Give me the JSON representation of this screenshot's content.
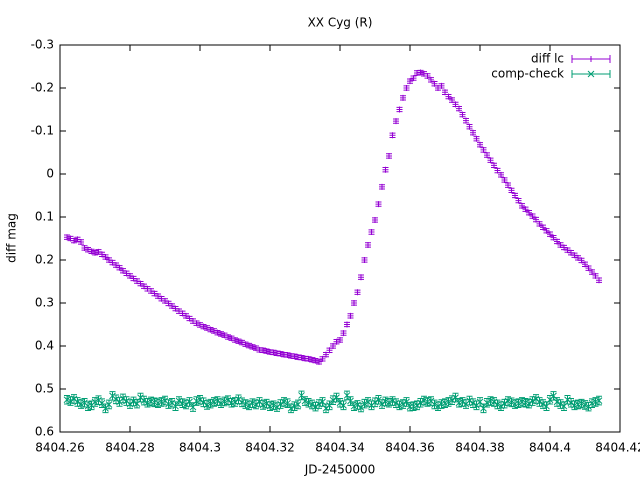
{
  "chart_data": {
    "type": "scatter",
    "title": "XX Cyg (R)",
    "x_label": "JD-2450000",
    "y_label": "diff mag",
    "xlim": [
      8404.26,
      8404.42
    ],
    "xticks": [
      8404.26,
      8404.28,
      8404.3,
      8404.32,
      8404.34,
      8404.36,
      8404.38,
      8404.4,
      8404.42
    ],
    "ylim": [
      -0.3,
      0.6
    ],
    "y_inverted": true,
    "yticks": [
      -0.3,
      -0.2,
      -0.1,
      0,
      0.1,
      0.2,
      0.3,
      0.4,
      0.5,
      0.6
    ],
    "legend": "top-right",
    "x": [
      8404.262,
      8404.263,
      8404.264,
      8404.265,
      8404.266,
      8404.267,
      8404.268,
      8404.269,
      8404.27,
      8404.271,
      8404.272,
      8404.273,
      8404.274,
      8404.275,
      8404.276,
      8404.277,
      8404.278,
      8404.279,
      8404.28,
      8404.281,
      8404.282,
      8404.283,
      8404.284,
      8404.285,
      8404.286,
      8404.287,
      8404.288,
      8404.289,
      8404.29,
      8404.291,
      8404.292,
      8404.293,
      8404.294,
      8404.295,
      8404.296,
      8404.297,
      8404.298,
      8404.299,
      8404.3,
      8404.301,
      8404.302,
      8404.303,
      8404.304,
      8404.305,
      8404.306,
      8404.307,
      8404.308,
      8404.309,
      8404.31,
      8404.311,
      8404.312,
      8404.313,
      8404.314,
      8404.315,
      8404.316,
      8404.317,
      8404.318,
      8404.319,
      8404.32,
      8404.321,
      8404.322,
      8404.323,
      8404.324,
      8404.325,
      8404.326,
      8404.327,
      8404.328,
      8404.329,
      8404.33,
      8404.331,
      8404.332,
      8404.333,
      8404.334,
      8404.335,
      8404.336,
      8404.337,
      8404.338,
      8404.339,
      8404.34,
      8404.341,
      8404.342,
      8404.343,
      8404.344,
      8404.345,
      8404.346,
      8404.347,
      8404.348,
      8404.349,
      8404.35,
      8404.351,
      8404.352,
      8404.353,
      8404.354,
      8404.355,
      8404.356,
      8404.357,
      8404.358,
      8404.359,
      8404.36,
      8404.361,
      8404.362,
      8404.363,
      8404.364,
      8404.365,
      8404.366,
      8404.367,
      8404.368,
      8404.369,
      8404.37,
      8404.371,
      8404.372,
      8404.373,
      8404.374,
      8404.375,
      8404.376,
      8404.377,
      8404.378,
      8404.379,
      8404.38,
      8404.381,
      8404.382,
      8404.383,
      8404.384,
      8404.385,
      8404.386,
      8404.387,
      8404.388,
      8404.389,
      8404.39,
      8404.391,
      8404.392,
      8404.393,
      8404.394,
      8404.395,
      8404.396,
      8404.397,
      8404.398,
      8404.399,
      8404.4,
      8404.401,
      8404.402,
      8404.403,
      8404.404,
      8404.405,
      8404.406,
      8404.407,
      8404.408,
      8404.409,
      8404.41,
      8404.411,
      8404.412,
      8404.413,
      8404.414
    ],
    "series": [
      {
        "name": "diff lc",
        "color": "#9400d3",
        "marker": "plus",
        "yerr": 0.005,
        "values": [
          0.147,
          0.15,
          0.155,
          0.152,
          0.158,
          0.172,
          0.176,
          0.18,
          0.183,
          0.181,
          0.187,
          0.193,
          0.2,
          0.206,
          0.212,
          0.218,
          0.225,
          0.231,
          0.237,
          0.243,
          0.249,
          0.255,
          0.261,
          0.267,
          0.272,
          0.278,
          0.284,
          0.29,
          0.295,
          0.301,
          0.307,
          0.313,
          0.319,
          0.324,
          0.33,
          0.336,
          0.342,
          0.347,
          0.351,
          0.355,
          0.358,
          0.362,
          0.365,
          0.369,
          0.372,
          0.375,
          0.379,
          0.382,
          0.386,
          0.389,
          0.392,
          0.396,
          0.399,
          0.402,
          0.405,
          0.409,
          0.41,
          0.412,
          0.414,
          0.415,
          0.417,
          0.418,
          0.42,
          0.421,
          0.423,
          0.424,
          0.426,
          0.427,
          0.429,
          0.43,
          0.432,
          0.434,
          0.437,
          0.43,
          0.42,
          0.41,
          0.4,
          0.39,
          0.386,
          0.37,
          0.35,
          0.33,
          0.3,
          0.275,
          0.24,
          0.2,
          0.165,
          0.135,
          0.107,
          0.07,
          0.03,
          -0.01,
          -0.042,
          -0.09,
          -0.123,
          -0.15,
          -0.177,
          -0.2,
          -0.216,
          -0.223,
          -0.235,
          -0.236,
          -0.233,
          -0.228,
          -0.219,
          -0.21,
          -0.2,
          -0.205,
          -0.19,
          -0.18,
          -0.172,
          -0.162,
          -0.152,
          -0.138,
          -0.124,
          -0.11,
          -0.096,
          -0.082,
          -0.068,
          -0.056,
          -0.044,
          -0.032,
          -0.02,
          -0.008,
          0.002,
          0.014,
          0.026,
          0.038,
          0.05,
          0.062,
          0.074,
          0.082,
          0.09,
          0.098,
          0.106,
          0.116,
          0.124,
          0.132,
          0.14,
          0.148,
          0.157,
          0.165,
          0.171,
          0.177,
          0.183,
          0.189,
          0.195,
          0.201,
          0.21,
          0.219,
          0.228,
          0.237,
          0.247
        ]
      },
      {
        "name": "comp-check",
        "color": "#009e73",
        "marker": "x",
        "yerr": 0.01,
        "values": [
          0.525,
          0.528,
          0.523,
          0.53,
          0.535,
          0.532,
          0.54,
          0.538,
          0.53,
          0.526,
          0.533,
          0.545,
          0.536,
          0.516,
          0.524,
          0.53,
          0.522,
          0.528,
          0.535,
          0.529,
          0.534,
          0.52,
          0.527,
          0.532,
          0.529,
          0.531,
          0.533,
          0.53,
          0.527,
          0.535,
          0.532,
          0.54,
          0.528,
          0.533,
          0.536,
          0.53,
          0.542,
          0.528,
          0.525,
          0.531,
          0.537,
          0.534,
          0.53,
          0.528,
          0.533,
          0.529,
          0.526,
          0.532,
          0.53,
          0.524,
          0.531,
          0.535,
          0.538,
          0.533,
          0.536,
          0.53,
          0.537,
          0.534,
          0.54,
          0.538,
          0.542,
          0.535,
          0.53,
          0.533,
          0.545,
          0.54,
          0.536,
          0.515,
          0.528,
          0.532,
          0.536,
          0.541,
          0.535,
          0.53,
          0.545,
          0.538,
          0.526,
          0.52,
          0.532,
          0.538,
          0.515,
          0.528,
          0.54,
          0.537,
          0.543,
          0.534,
          0.53,
          0.538,
          0.531,
          0.525,
          0.535,
          0.529,
          0.532,
          0.528,
          0.533,
          0.538,
          0.535,
          0.53,
          0.541,
          0.54,
          0.538,
          0.532,
          0.527,
          0.53,
          0.528,
          0.536,
          0.54,
          0.535,
          0.533,
          0.53,
          0.526,
          0.52,
          0.532,
          0.53,
          0.535,
          0.527,
          0.533,
          0.538,
          0.53,
          0.545,
          0.532,
          0.528,
          0.53,
          0.536,
          0.54,
          0.534,
          0.528,
          0.531,
          0.535,
          0.533,
          0.53,
          0.532,
          0.534,
          0.528,
          0.523,
          0.53,
          0.535,
          0.54,
          0.525,
          0.516,
          0.53,
          0.535,
          0.54,
          0.525,
          0.532,
          0.538,
          0.536,
          0.534,
          0.537,
          0.541,
          0.533,
          0.53,
          0.527
        ]
      }
    ]
  }
}
